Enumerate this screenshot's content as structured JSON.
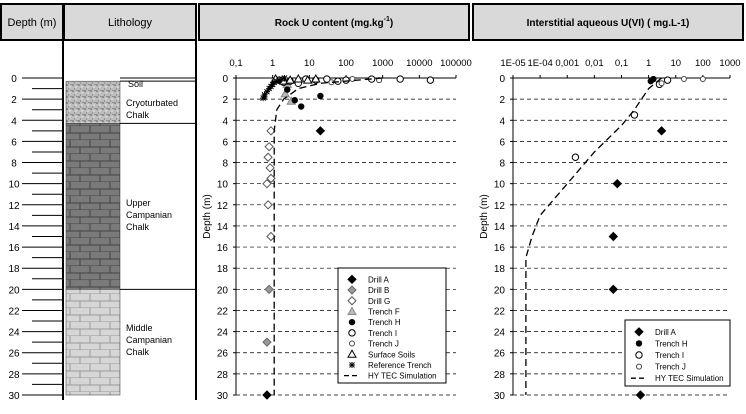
{
  "headers": {
    "depth": "Depth (m)",
    "lithology": "Lithology",
    "rock_u": "Rock U content (mg.kg",
    "rock_u_sup": "-1",
    "rock_u_close": ")",
    "interstitial": "Interstitial aqueous U(VI) ( mg.L-1)"
  },
  "depth_scale": {
    "ticks": [
      "0",
      "2",
      "4",
      "6",
      "8",
      "10",
      "12",
      "14",
      "16",
      "18",
      "20",
      "22",
      "24",
      "26",
      "28",
      "30"
    ]
  },
  "lithology": [
    {
      "label": "Soil",
      "from": 0,
      "to": 0.3,
      "pattern": "none"
    },
    {
      "label": "Cryoturbated Chalk",
      "from": 0.3,
      "to": 4.3,
      "pattern": "speckle"
    },
    {
      "label": "Upper Campanian Chalk",
      "from": 4.3,
      "to": 20,
      "pattern": "dark-brick"
    },
    {
      "label": "Middle Campanian Chalk",
      "from": 20,
      "to": 30,
      "pattern": "light-brick"
    }
  ],
  "lithology_labels": {
    "soil": "Soil",
    "cryo": [
      "Cryoturbated",
      "Chalk"
    ],
    "upper": [
      "Upper",
      "Campanian",
      "Chalk"
    ],
    "middle": [
      "Middle",
      "Campanian",
      "Chalk"
    ]
  },
  "chart_data": [
    {
      "type": "scatter",
      "xscale": "log",
      "xlim": [
        0.1,
        100000
      ],
      "ylim": [
        0,
        30
      ],
      "y_inverted": true,
      "x_tick_labels": [
        "0,1",
        "1",
        "10",
        "100",
        "1000",
        "10000",
        "100000"
      ],
      "y_tick_labels": [
        "0",
        "2",
        "4",
        "6",
        "8",
        "10",
        "12",
        "14",
        "16",
        "18",
        "20",
        "22",
        "24",
        "26",
        "28",
        "30"
      ],
      "ylabel": "Depth (m)",
      "grid": "horizontal-dashed",
      "legend_position": "bottom-right",
      "series": [
        {
          "name": "Drill A",
          "marker": "diamond-filled",
          "points": [
            [
              20,
              5
            ],
            [
              0.7,
              30
            ]
          ]
        },
        {
          "name": "Drill B",
          "marker": "diamond-gray",
          "points": [
            [
              0.8,
              20
            ],
            [
              0.7,
              25
            ]
          ]
        },
        {
          "name": "Drill G",
          "marker": "diamond-open",
          "points": [
            [
              0.9,
              5
            ],
            [
              0.8,
              6.5
            ],
            [
              0.75,
              7.5
            ],
            [
              0.85,
              8.5
            ],
            [
              0.9,
              9.5
            ],
            [
              0.7,
              10
            ],
            [
              0.75,
              12
            ],
            [
              0.9,
              15
            ]
          ]
        },
        {
          "name": "Trench F",
          "marker": "triangle-gray",
          "points": [
            [
              2.5,
              0.6
            ],
            [
              2.2,
              1.5
            ],
            [
              3.2,
              2.2
            ]
          ]
        },
        {
          "name": "Trench H",
          "marker": "circle-filled",
          "points": [
            [
              2.5,
              1.1
            ],
            [
              4,
              2.1
            ],
            [
              6,
              2.7
            ],
            [
              20,
              1.7
            ]
          ]
        },
        {
          "name": "Trench I",
          "marker": "circle-open",
          "points": [
            [
              1.5,
              0.2
            ],
            [
              2,
              0.4
            ],
            [
              3,
              0.3
            ],
            [
              5,
              0.5
            ],
            [
              8,
              0.1
            ],
            [
              15,
              0.2
            ],
            [
              30,
              0.1
            ],
            [
              60,
              0.3
            ],
            [
              100,
              0.2
            ],
            [
              500,
              0.1
            ],
            [
              3000,
              0.1
            ],
            [
              20000,
              0.2
            ]
          ]
        },
        {
          "name": "Trench J",
          "marker": "circle-open-small",
          "points": [
            [
              40,
              0.4
            ],
            [
              150,
              0.1
            ],
            [
              800,
              0.2
            ]
          ]
        },
        {
          "name": "Surface Soils",
          "marker": "triangle-open",
          "points": [
            [
              1.2,
              0.1
            ],
            [
              2,
              0.3
            ],
            [
              3,
              0.2
            ],
            [
              5,
              0.1
            ],
            [
              9,
              0.2
            ],
            [
              15,
              0.1
            ]
          ]
        },
        {
          "name": "Reference Trench",
          "marker": "star",
          "points": [
            [
              0.55,
              1.9
            ],
            [
              0.6,
              1.6
            ],
            [
              0.7,
              1.3
            ],
            [
              0.8,
              1.0
            ],
            [
              0.9,
              0.8
            ],
            [
              1.0,
              0.6
            ],
            [
              1.1,
              0.4
            ],
            [
              1.3,
              0.3
            ],
            [
              1.5,
              0.2
            ],
            [
              1.8,
              0.1
            ],
            [
              2.1,
              0.0
            ],
            [
              0.6,
              1.8
            ]
          ]
        },
        {
          "name": "HY TEC Simulation",
          "marker": "dashed-line",
          "points": [
            [
              1000,
              0
            ],
            [
              20,
              0.5
            ],
            [
              5,
              1.0
            ],
            [
              2,
              2.0
            ],
            [
              1.3,
              3.0
            ],
            [
              1.1,
              5.0
            ],
            [
              1.1,
              30
            ]
          ]
        }
      ]
    },
    {
      "type": "scatter",
      "xscale": "log",
      "xlim": [
        1e-05,
        1000
      ],
      "ylim": [
        0,
        30
      ],
      "y_inverted": true,
      "x_tick_labels": [
        "1E-05",
        "1E-04",
        "0,001",
        "0,01",
        "0,1",
        "1",
        "10",
        "100",
        "1000"
      ],
      "y_tick_labels": [
        "0",
        "2",
        "4",
        "6",
        "8",
        "10",
        "12",
        "14",
        "16",
        "18",
        "20",
        "22",
        "24",
        "26",
        "28",
        "30"
      ],
      "ylabel": "Depth (m)",
      "grid": "horizontal-dashed",
      "legend_position": "bottom-right",
      "series": [
        {
          "name": "Drill A",
          "marker": "diamond-filled",
          "points": [
            [
              3,
              5
            ],
            [
              0.07,
              10
            ],
            [
              0.05,
              15
            ],
            [
              0.05,
              20
            ],
            [
              0.5,
              30
            ]
          ]
        },
        {
          "name": "Trench H",
          "marker": "circle-filled",
          "points": [
            [
              1.5,
              0.1
            ],
            [
              1.2,
              0.3
            ]
          ]
        },
        {
          "name": "Trench I",
          "marker": "circle-open",
          "points": [
            [
              0.3,
              3.5
            ],
            [
              0.002,
              7.5
            ],
            [
              2.5,
              0.6
            ],
            [
              5,
              0.2
            ]
          ]
        },
        {
          "name": "Trench J",
          "marker": "circle-open-small",
          "points": [
            [
              20,
              0.1
            ],
            [
              100,
              0.1
            ],
            [
              3,
              0.5
            ]
          ]
        },
        {
          "name": "HY TEC Simulation",
          "marker": "dashed-line",
          "points": [
            [
              3,
              0
            ],
            [
              1,
              1
            ],
            [
              0.3,
              3
            ],
            [
              0.1,
              4.5
            ],
            [
              0.01,
              7
            ],
            [
              0.001,
              10
            ],
            [
              0.0001,
              13
            ],
            [
              5e-05,
              15
            ],
            [
              3e-05,
              17
            ],
            [
              3e-05,
              20
            ],
            [
              3e-05,
              30
            ]
          ]
        }
      ]
    }
  ]
}
